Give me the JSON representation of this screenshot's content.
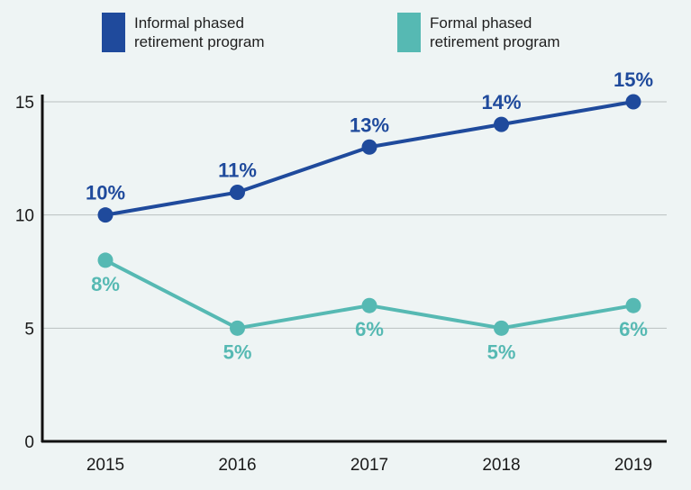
{
  "chart_data": {
    "type": "line",
    "title": "",
    "xlabel": "",
    "ylabel": "",
    "x": [
      "2015",
      "2016",
      "2017",
      "2018",
      "2019"
    ],
    "ylim": [
      0,
      15
    ],
    "yticks": [
      0,
      5,
      10,
      15
    ],
    "grid": true,
    "legend_position": "top",
    "series": [
      {
        "name": "Informal phased retirement program",
        "legend_lines": [
          "Informal phased",
          "retirement program"
        ],
        "color": "#1f4a9c",
        "values": [
          10,
          11,
          13,
          14,
          15
        ],
        "labels": [
          "10%",
          "11%",
          "13%",
          "14%",
          "15%"
        ],
        "label_placement": "above"
      },
      {
        "name": "Formal phased retirement program",
        "legend_lines": [
          "Formal phased",
          "retirement program"
        ],
        "color": "#56b9b3",
        "values": [
          8,
          5,
          6,
          5,
          6
        ],
        "labels": [
          "8%",
          "5%",
          "6%",
          "5%",
          "6%"
        ],
        "label_placement": "below"
      }
    ]
  }
}
